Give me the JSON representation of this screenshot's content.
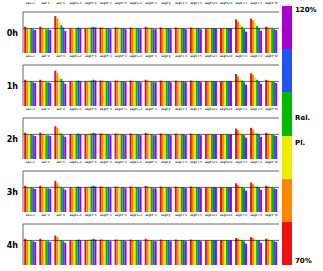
{
  "chart_data": [
    {
      "type": "bar",
      "title": "0h",
      "annotations": [
        "120%",
        "Rel.",
        "Pl.",
        "70%"
      ],
      "categories": [
        "ΔC₁",
        "ΔF₂",
        "ΔF₃",
        "ΔβC₂",
        "ΔβP₃",
        "ΔβP₄",
        "ΔβP₄",
        "ΔβC₄",
        "ΔβF₄",
        "Δβγ",
        "ΔβT₃",
        "ΔβT₅",
        "ΔβO₁",
        "ΔβO₂",
        "ΔβT₆",
        "ΔβT₄",
        "ΔβFθ"
      ],
      "series": [
        {
          "color": "#ee1111",
          "values": [
            102,
            102,
            115,
            100,
            100,
            101,
            101,
            101,
            102,
            101,
            101,
            101,
            100,
            100,
            111,
            112,
            102
          ]
        },
        {
          "color": "#ff8800",
          "values": [
            100,
            100,
            112,
            99,
            100,
            101,
            101,
            100,
            101,
            100,
            100,
            100,
            100,
            100,
            108,
            110,
            101
          ]
        },
        {
          "color": "#eeee00",
          "values": [
            100,
            100,
            108,
            99,
            101,
            100,
            100,
            100,
            100,
            100,
            100,
            100,
            100,
            100,
            105,
            107,
            100
          ]
        },
        {
          "color": "#00bb00",
          "values": [
            100,
            99,
            104,
            100,
            101,
            100,
            100,
            100,
            100,
            100,
            100,
            100,
            100,
            100,
            102,
            103,
            100
          ]
        },
        {
          "color": "#2255ee",
          "values": [
            99,
            99,
            101,
            101,
            102,
            100,
            100,
            100,
            99,
            100,
            100,
            100,
            100,
            100,
            99,
            100,
            99
          ]
        },
        {
          "color": "#aa00cc",
          "values": [
            98,
            98,
            97,
            100,
            101,
            99,
            99,
            99,
            99,
            99,
            99,
            99,
            100,
            100,
            96,
            97,
            98
          ]
        }
      ],
      "ylim": [
        70,
        120
      ],
      "ref_line": 100,
      "tick_labels": "x"
    },
    {
      "type": "bar",
      "title": "1h",
      "categories": [
        "ΔC₁",
        "ΔF₂",
        "ΔF₃",
        "ΔβC₂",
        "ΔβP₃",
        "ΔβP₄",
        "ΔβP₄",
        "ΔβC₄",
        "ΔβF₄",
        "Δβγ",
        "ΔβT₃",
        "ΔβT₅",
        "ΔβO₁",
        "ΔβO₂",
        "ΔβT₆",
        "ΔβT₄",
        "ΔβFθ"
      ],
      "series": [
        {
          "color": "#ee1111",
          "values": [
            102,
            102,
            113,
            100,
            100,
            101,
            101,
            101,
            102,
            101,
            101,
            101,
            100,
            100,
            109,
            110,
            102
          ]
        },
        {
          "color": "#ff8800",
          "values": [
            100,
            100,
            110,
            99,
            100,
            101,
            101,
            100,
            101,
            100,
            100,
            100,
            100,
            100,
            106,
            108,
            101
          ]
        },
        {
          "color": "#eeee00",
          "values": [
            100,
            100,
            106,
            99,
            101,
            100,
            100,
            100,
            100,
            100,
            100,
            100,
            100,
            100,
            103,
            105,
            100
          ]
        },
        {
          "color": "#00bb00",
          "values": [
            100,
            99,
            103,
            100,
            101,
            100,
            100,
            100,
            100,
            100,
            100,
            100,
            100,
            100,
            101,
            102,
            100
          ]
        },
        {
          "color": "#2255ee",
          "values": [
            99,
            99,
            100,
            101,
            102,
            100,
            100,
            100,
            99,
            100,
            100,
            100,
            100,
            100,
            99,
            100,
            99
          ]
        },
        {
          "color": "#aa00cc",
          "values": [
            98,
            98,
            97,
            100,
            101,
            99,
            99,
            99,
            99,
            99,
            99,
            99,
            100,
            100,
            96,
            97,
            98
          ]
        }
      ],
      "ylim": [
        70,
        120
      ],
      "ref_line": 100,
      "tick_labels": "x"
    },
    {
      "type": "bar",
      "title": "2h",
      "categories": [
        "ΔC₁",
        "ΔF₂",
        "ΔF₃",
        "ΔβC₂",
        "ΔβP₃",
        "ΔβP₄",
        "ΔβP₄",
        "ΔβC₄",
        "ΔβF₄",
        "Δβγ",
        "ΔβT₃",
        "ΔβT₅",
        "ΔβO₁",
        "ΔβO₂",
        "ΔβT₆",
        "ΔβT₄",
        "ΔβFθ"
      ],
      "series": [
        {
          "color": "#ee1111",
          "values": [
            102,
            102,
            110,
            100,
            100,
            101,
            101,
            101,
            102,
            101,
            101,
            101,
            100,
            100,
            107,
            108,
            102
          ]
        },
        {
          "color": "#ff8800",
          "values": [
            100,
            100,
            108,
            99,
            100,
            101,
            101,
            100,
            101,
            100,
            100,
            100,
            100,
            100,
            105,
            106,
            101
          ]
        },
        {
          "color": "#eeee00",
          "values": [
            100,
            100,
            104,
            99,
            101,
            100,
            100,
            100,
            100,
            100,
            100,
            100,
            100,
            100,
            102,
            103,
            100
          ]
        },
        {
          "color": "#00bb00",
          "values": [
            100,
            99,
            101,
            100,
            101,
            100,
            100,
            100,
            100,
            100,
            100,
            100,
            100,
            100,
            100,
            101,
            100
          ]
        },
        {
          "color": "#2255ee",
          "values": [
            99,
            99,
            99,
            101,
            102,
            100,
            100,
            100,
            99,
            100,
            100,
            100,
            100,
            100,
            99,
            100,
            99
          ]
        },
        {
          "color": "#aa00cc",
          "values": [
            98,
            98,
            97,
            100,
            101,
            99,
            99,
            99,
            99,
            99,
            99,
            99,
            100,
            100,
            96,
            97,
            98
          ]
        }
      ],
      "ylim": [
        70,
        120
      ],
      "ref_line": 100,
      "tick_labels": "x"
    },
    {
      "type": "bar",
      "title": "3h",
      "categories": [
        "ΔC₁",
        "ΔF₂",
        "ΔF₃",
        "ΔβC₂",
        "ΔβP₃",
        "ΔβP₄",
        "ΔβP₄",
        "ΔβC₄",
        "ΔβF₄",
        "Δβγ",
        "ΔβT₃",
        "ΔβT₅",
        "ΔβO₁",
        "ΔβO₂",
        "ΔβT₆",
        "ΔβT₄",
        "ΔβFθ"
      ],
      "series": [
        {
          "color": "#ee1111",
          "values": [
            102,
            102,
            108,
            100,
            100,
            101,
            101,
            101,
            102,
            101,
            101,
            101,
            100,
            100,
            105,
            106,
            102
          ]
        },
        {
          "color": "#ff8800",
          "values": [
            100,
            100,
            105,
            99,
            100,
            101,
            101,
            100,
            101,
            100,
            100,
            100,
            100,
            100,
            103,
            104,
            101
          ]
        },
        {
          "color": "#eeee00",
          "values": [
            100,
            100,
            102,
            99,
            101,
            100,
            100,
            100,
            100,
            100,
            100,
            100,
            100,
            100,
            101,
            102,
            100
          ]
        },
        {
          "color": "#00bb00",
          "values": [
            100,
            99,
            100,
            100,
            101,
            100,
            100,
            100,
            100,
            100,
            100,
            100,
            100,
            100,
            100,
            101,
            100
          ]
        },
        {
          "color": "#2255ee",
          "values": [
            99,
            99,
            99,
            101,
            102,
            100,
            100,
            100,
            99,
            100,
            100,
            100,
            100,
            100,
            99,
            100,
            99
          ]
        },
        {
          "color": "#aa00cc",
          "values": [
            98,
            98,
            97,
            100,
            101,
            99,
            99,
            99,
            99,
            99,
            99,
            99,
            100,
            100,
            96,
            97,
            98
          ]
        }
      ],
      "ylim": [
        70,
        120
      ],
      "ref_line": 100,
      "tick_labels": "x"
    },
    {
      "type": "bar",
      "title": "4h",
      "categories": [
        "ΔC₁",
        "ΔF₂",
        "ΔF₃",
        "ΔβC₂",
        "ΔβP₃",
        "ΔβP₄",
        "ΔβP₄",
        "ΔβC₄",
        "ΔβF₄",
        "Δβγ",
        "ΔβT₃",
        "ΔβT₅",
        "ΔβO₁",
        "ΔβO₂",
        "ΔβT₆",
        "ΔβT₄",
        "ΔβFθ"
      ],
      "series": [
        {
          "color": "#ee1111",
          "values": [
            102,
            102,
            106,
            100,
            100,
            101,
            101,
            101,
            102,
            101,
            101,
            101,
            100,
            100,
            103,
            104,
            102
          ]
        },
        {
          "color": "#ff8800",
          "values": [
            100,
            100,
            104,
            99,
            100,
            101,
            101,
            100,
            101,
            100,
            100,
            100,
            100,
            100,
            102,
            103,
            101
          ]
        },
        {
          "color": "#eeee00",
          "values": [
            100,
            100,
            101,
            99,
            101,
            100,
            100,
            100,
            100,
            100,
            100,
            100,
            100,
            100,
            101,
            101,
            100
          ]
        },
        {
          "color": "#00bb00",
          "values": [
            100,
            99,
            100,
            100,
            101,
            100,
            100,
            100,
            100,
            100,
            100,
            100,
            100,
            100,
            100,
            100,
            100
          ]
        },
        {
          "color": "#2255ee",
          "values": [
            99,
            99,
            99,
            101,
            102,
            100,
            100,
            100,
            99,
            100,
            100,
            100,
            100,
            100,
            99,
            100,
            99
          ]
        },
        {
          "color": "#aa00cc",
          "values": [
            98,
            98,
            97,
            100,
            101,
            99,
            99,
            99,
            99,
            99,
            99,
            99,
            100,
            100,
            96,
            97,
            98
          ]
        }
      ],
      "ylim": [
        70,
        120
      ],
      "ref_line": 100,
      "tick_labels": "x"
    }
  ]
}
